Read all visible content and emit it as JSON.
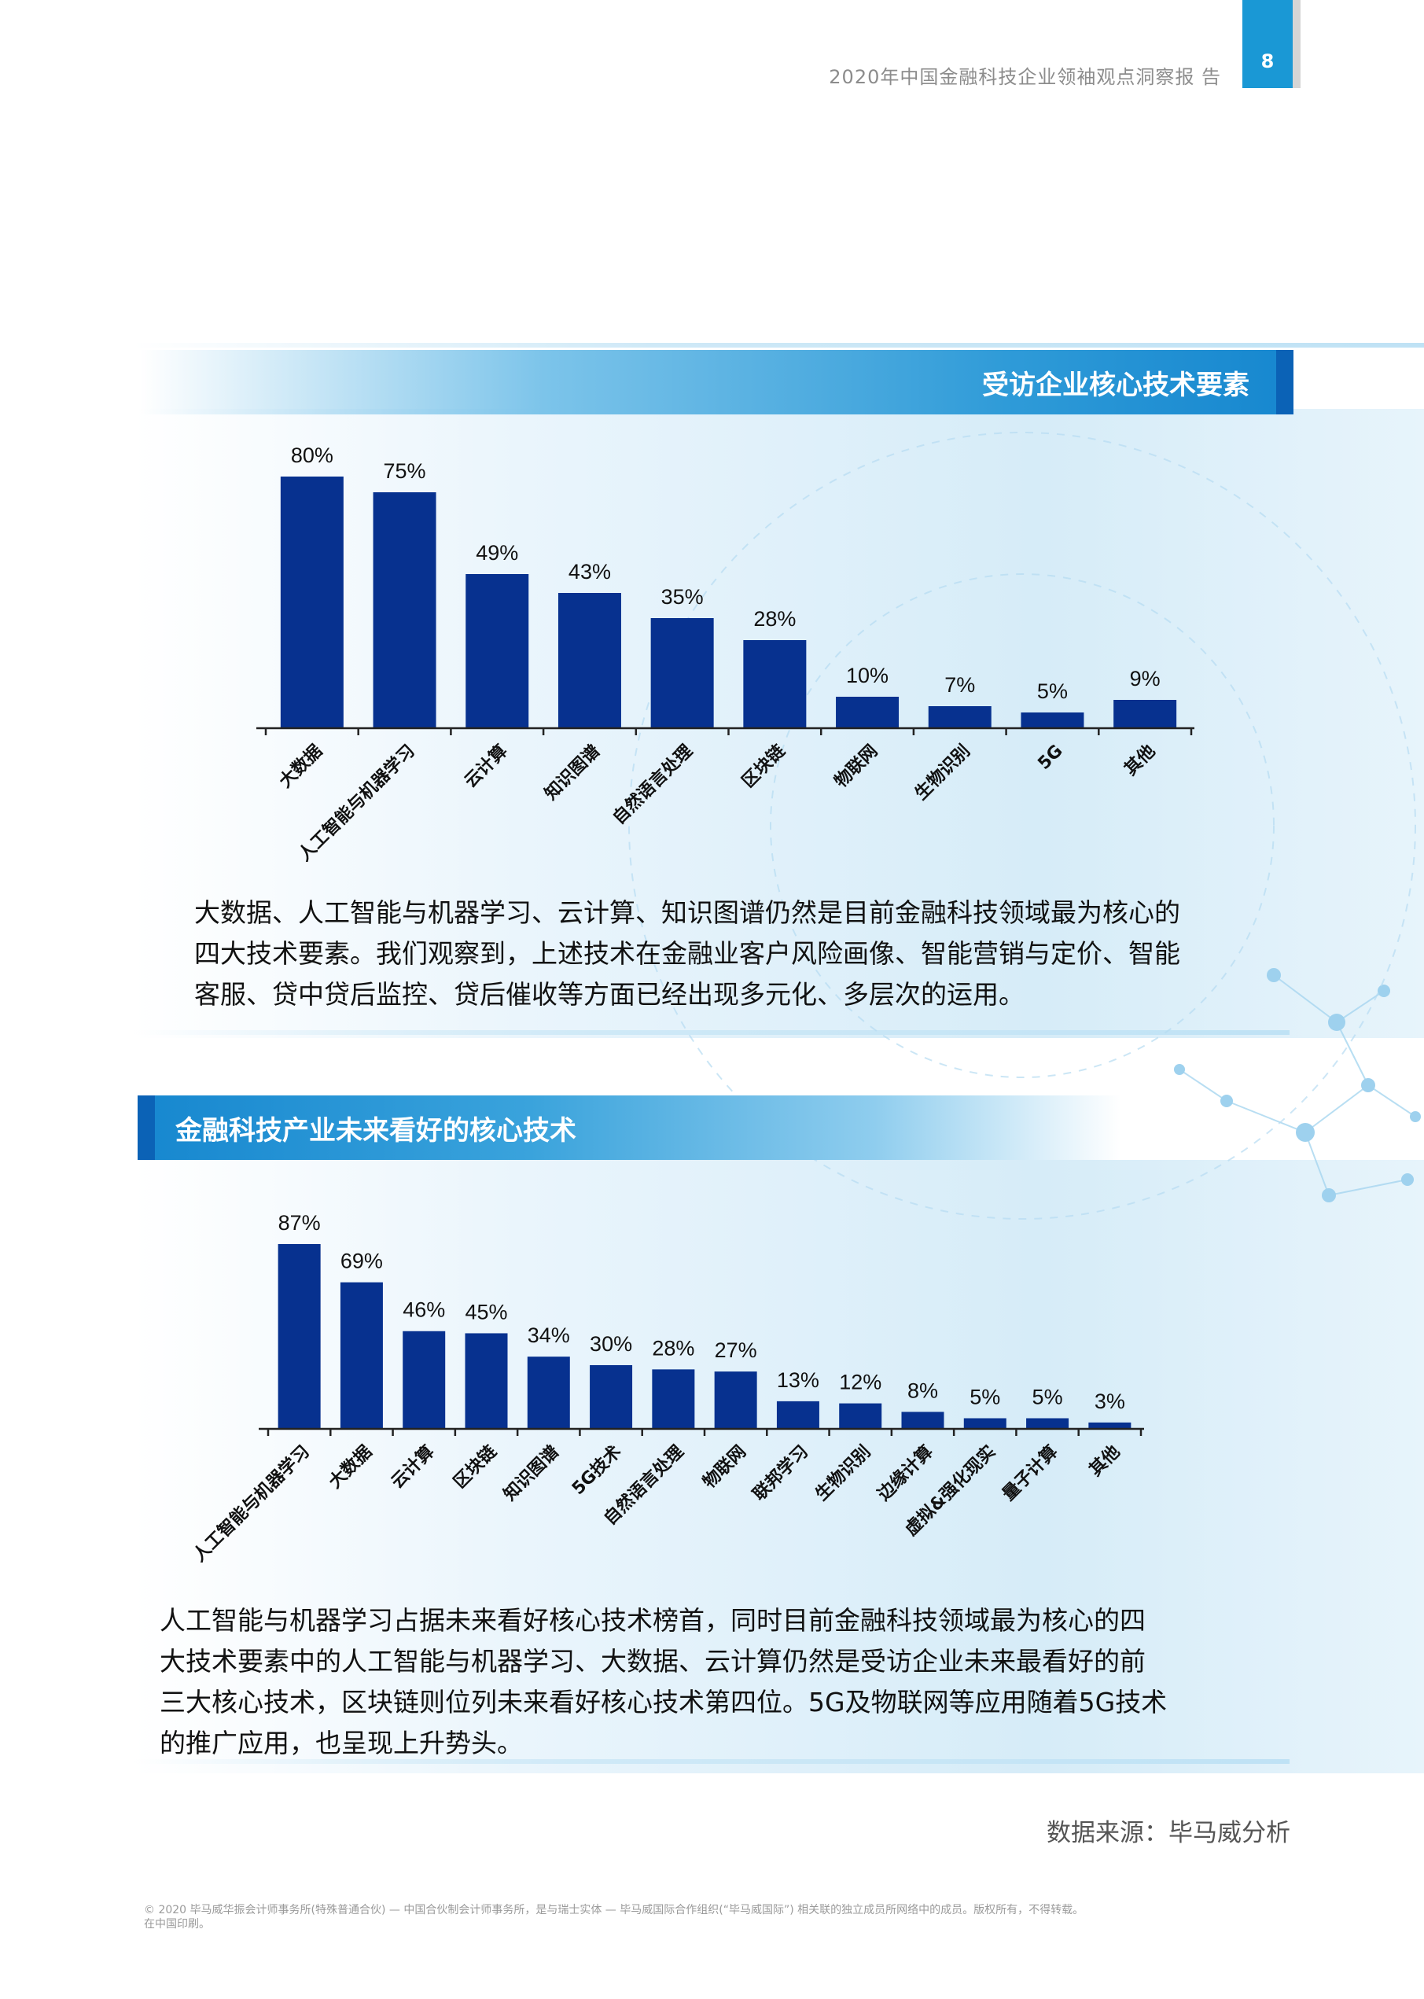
{
  "header": {
    "report_title": "2020年中国金融科技企业领袖观点洞察报 告",
    "page_number": "8",
    "accent_color": "#1a98d5"
  },
  "section1": {
    "title": "受访企业核心技术要素",
    "paragraph": "大数据、人工智能与机器学习、云计算、知识图谱仍然是目前金融科技领域最为核心的\n四大技术要素。我们观察到，上述技术在金融业客户风险画像、智能营销与定价、智能\n客服、贷中贷后监控、贷后催收等方面已经出现多元化、多层次的运用。"
  },
  "section2": {
    "title": "金融科技产业未来看好的核心技术",
    "paragraph": "人工智能与机器学习占据未来看好核心技术榜首，同时目前金融科技领域最为核心的四\n大技术要素中的人工智能与机器学习、大数据、云计算仍然是受访企业未来最看好的前\n三大核心技术，区块链则位列未来看好核心技术第四位。5G及物联网等应用随着5G技术\n的推广应用，也呈现上升势头。"
  },
  "source": "数据来源：毕马威分析",
  "footer": "© 2020 毕马威华振会计师事务所(特殊普通合伙) — 中国合伙制会计师事务所，是与瑞士实体 — 毕马威国际合作组织(“毕马威国际”) 相关联的独立成员所网络中的成员。版权所有，不得转载。\n在中国印刷。",
  "chart_data": [
    {
      "type": "bar",
      "title": "受访企业核心技术要素",
      "categories": [
        "大数据",
        "人工智能与机器学习",
        "云计算",
        "知识图谱",
        "自然语言处理",
        "区块链",
        "物联网",
        "生物识别",
        "5G",
        "其他"
      ],
      "values": [
        80,
        75,
        49,
        43,
        35,
        28,
        10,
        7,
        5,
        9
      ],
      "value_labels": [
        "80%",
        "75%",
        "49%",
        "43%",
        "35%",
        "28%",
        "10%",
        "7%",
        "5%",
        "9%"
      ],
      "unit": "%",
      "ylim": [
        0,
        80
      ],
      "bar_color": "#07318f",
      "grid": false,
      "legend": "none"
    },
    {
      "type": "bar",
      "title": "金融科技产业未来看好的核心技术",
      "categories": [
        "人工智能与机器学习",
        "大数据",
        "云计算",
        "区块链",
        "知识图谱",
        "5G技术",
        "自然语言处理",
        "物联网",
        "联邦学习",
        "生物识别",
        "边缘计算",
        "虚拟&强化现实",
        "量子计算",
        "其他"
      ],
      "values": [
        87,
        69,
        46,
        45,
        34,
        30,
        28,
        27,
        13,
        12,
        8,
        5,
        5,
        3
      ],
      "value_labels": [
        "87%",
        "69%",
        "46%",
        "45%",
        "34%",
        "30%",
        "28%",
        "27%",
        "13%",
        "12%",
        "8%",
        "5%",
        "5%",
        "3%"
      ],
      "unit": "%",
      "ylim": [
        0,
        87
      ],
      "bar_color": "#07318f",
      "grid": false,
      "legend": "none"
    }
  ]
}
